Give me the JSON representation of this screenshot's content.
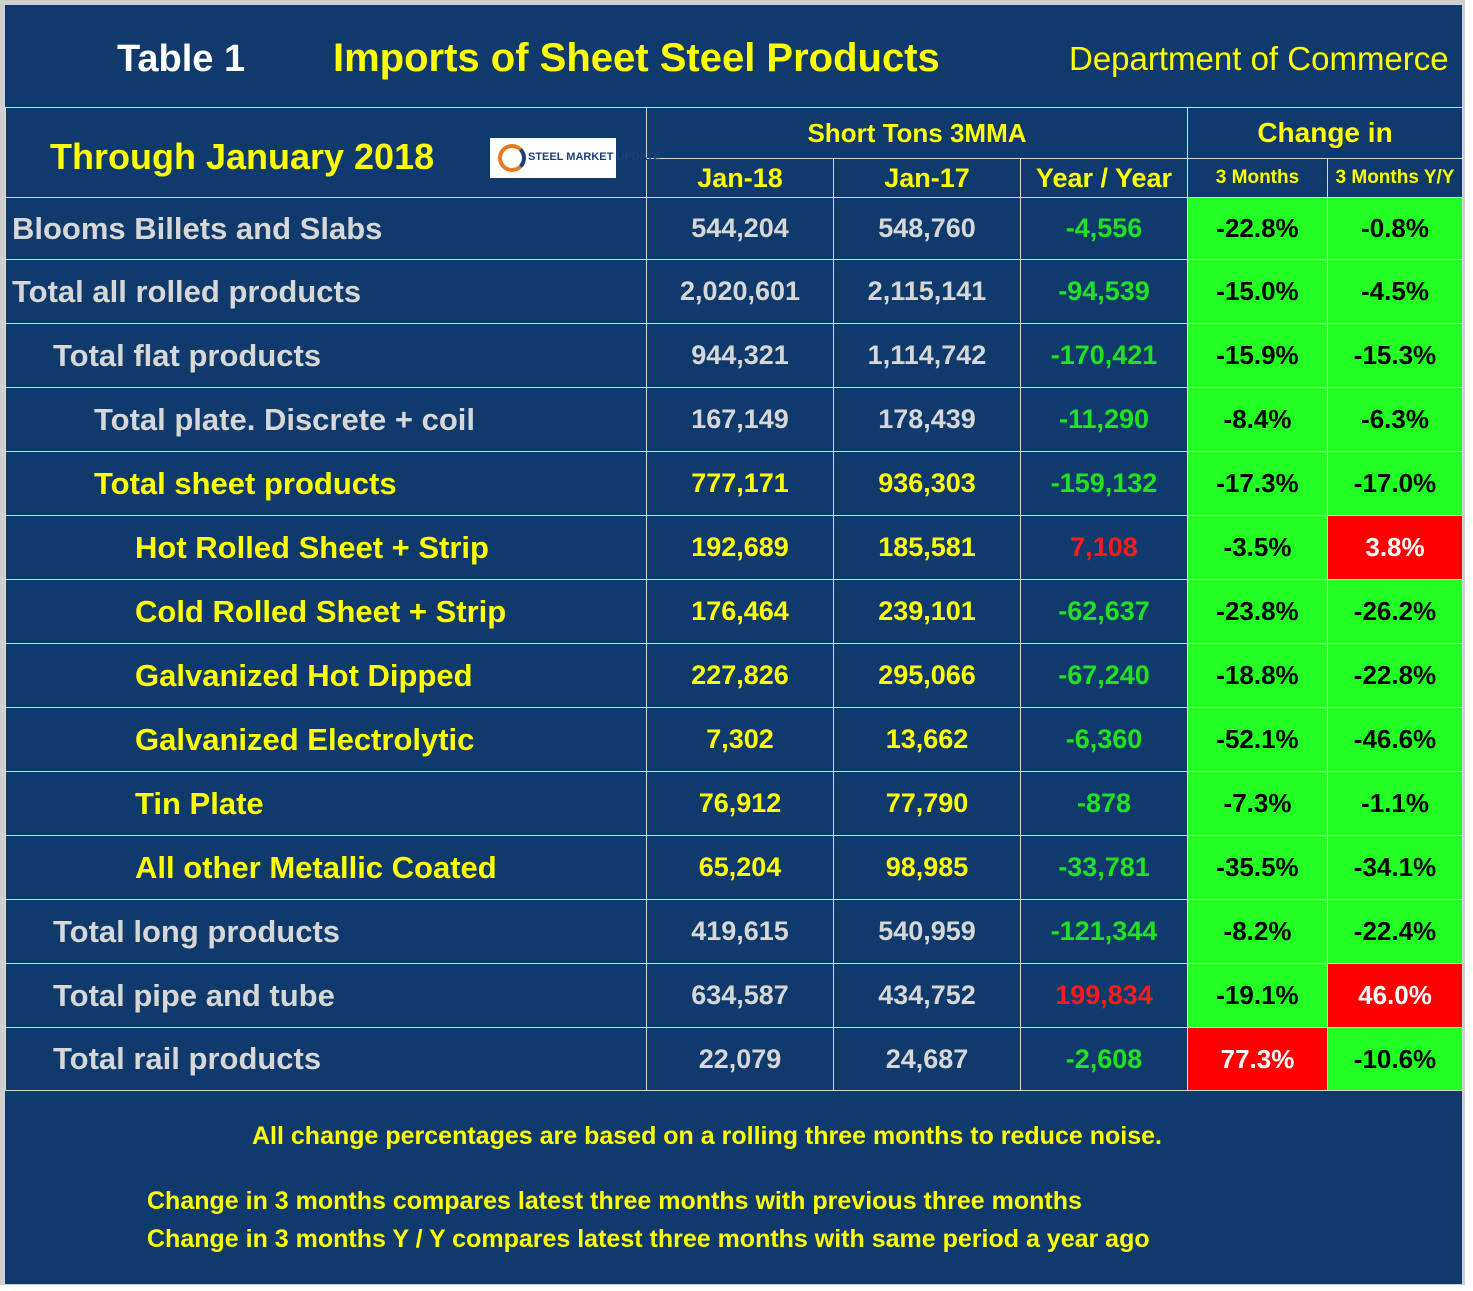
{
  "header": {
    "table_no": "Table 1",
    "title": "Imports of Sheet Steel Products",
    "source": "Department of Commerce",
    "period": "Through January 2018",
    "logo_text": "STEEL MARKET UPDATE"
  },
  "chart_data": {
    "type": "table",
    "group_headers": [
      "Short Tons 3MMA",
      "Change in"
    ],
    "columns": [
      "Jan-18",
      "Jan-17",
      "Year / Year",
      "3 Months",
      "3 Months Y/Y"
    ],
    "rows": [
      {
        "label": "Blooms Billets and Slabs",
        "jan18": "544,204",
        "jan17": "548,760",
        "yoy": "-4,556",
        "m3": "-22.8%",
        "m3yy": "-0.8%"
      },
      {
        "label": "Total all rolled products",
        "jan18": "2,020,601",
        "jan17": "2,115,141",
        "yoy": "-94,539",
        "m3": "-15.0%",
        "m3yy": "-4.5%"
      },
      {
        "label": "Total flat products",
        "jan18": "944,321",
        "jan17": "1,114,742",
        "yoy": "-170,421",
        "m3": "-15.9%",
        "m3yy": "-15.3%"
      },
      {
        "label": "Total plate. Discrete + coil",
        "jan18": "167,149",
        "jan17": "178,439",
        "yoy": "-11,290",
        "m3": "-8.4%",
        "m3yy": "-6.3%"
      },
      {
        "label": "Total sheet products",
        "jan18": "777,171",
        "jan17": "936,303",
        "yoy": "-159,132",
        "m3": "-17.3%",
        "m3yy": "-17.0%"
      },
      {
        "label": "Hot Rolled Sheet + Strip",
        "jan18": "192,689",
        "jan17": "185,581",
        "yoy": "7,108",
        "m3": "-3.5%",
        "m3yy": "3.8%"
      },
      {
        "label": "Cold Rolled Sheet + Strip",
        "jan18": "176,464",
        "jan17": "239,101",
        "yoy": "-62,637",
        "m3": "-23.8%",
        "m3yy": "-26.2%"
      },
      {
        "label": "Galvanized Hot Dipped",
        "jan18": "227,826",
        "jan17": "295,066",
        "yoy": "-67,240",
        "m3": "-18.8%",
        "m3yy": "-22.8%"
      },
      {
        "label": "Galvanized Electrolytic",
        "jan18": "7,302",
        "jan17": "13,662",
        "yoy": "-6,360",
        "m3": "-52.1%",
        "m3yy": "-46.6%"
      },
      {
        "label": "Tin Plate",
        "jan18": "76,912",
        "jan17": "77,790",
        "yoy": "-878",
        "m3": "-7.3%",
        "m3yy": "-1.1%"
      },
      {
        "label": "All other Metallic Coated",
        "jan18": "65,204",
        "jan17": "98,985",
        "yoy": "-33,781",
        "m3": "-35.5%",
        "m3yy": "-34.1%"
      },
      {
        "label": "Total long products",
        "jan18": "419,615",
        "jan17": "540,959",
        "yoy": "-121,344",
        "m3": "-8.2%",
        "m3yy": "-22.4%"
      },
      {
        "label": "Total pipe and tube",
        "jan18": "634,587",
        "jan17": "434,752",
        "yoy": "199,834",
        "m3": "-19.1%",
        "m3yy": "46.0%"
      },
      {
        "label": "Total rail products",
        "jan18": "22,079",
        "jan17": "24,687",
        "yoy": "-2,608",
        "m3": "77.3%",
        "m3yy": "-10.6%"
      }
    ]
  },
  "footnotes": {
    "line1": "All change percentages are based on a rolling three months to reduce noise.",
    "line2": "Change in 3 months compares latest three months with previous three months",
    "line3": "Change in 3 months  Y / Y compares latest three months with same period a year ago"
  },
  "colors": {
    "background": "#0f3a6b",
    "highlight_text": "#ffff00",
    "normal_text": "#d7d7d7",
    "negative_value": "#22e022",
    "positive_value": "#ff1a1a",
    "cell_decrease": "#22ff22",
    "cell_increase": "#ff0000"
  }
}
